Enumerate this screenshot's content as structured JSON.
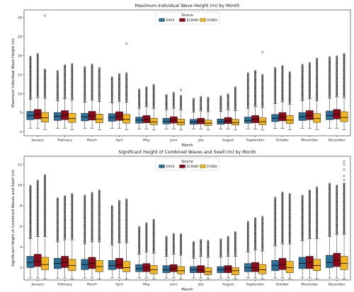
{
  "colors": {
    "ERA5": "#2a6f97",
    "ECMWF": "#8b0a1a",
    "FOWD": "#f2b51e",
    "outlier": "#000000",
    "median": "#000000"
  },
  "chart_data": [
    {
      "type": "box",
      "title": "Maximum Individual Wave Height (m) by Month",
      "xlabel": "Month",
      "ylabel": "Maximum Individual Wave Height (m)",
      "ylim": [
        -1,
        32
      ],
      "yticks": [
        0,
        5,
        10,
        15,
        20,
        25,
        30
      ],
      "grid": false,
      "legend": {
        "title": "Source",
        "placement": "top-center",
        "entries": [
          "ERA5",
          "ECMWF",
          "FOWD"
        ]
      },
      "categories": [
        "January",
        "February",
        "March",
        "April",
        "May",
        "June",
        "July",
        "August",
        "September",
        "October",
        "November",
        "December"
      ],
      "series": [
        {
          "name": "ERA5",
          "stats": [
            {
              "q1": 3.2,
              "med": 4.3,
              "q3": 5.4,
              "wlo": 1.0,
              "whi": 8.5,
              "omax": 19.8
            },
            {
              "q1": 3.0,
              "med": 4.1,
              "q3": 5.1,
              "wlo": 1.0,
              "whi": 8.2,
              "omax": 16.0
            },
            {
              "q1": 2.9,
              "med": 3.9,
              "q3": 4.9,
              "wlo": 1.0,
              "whi": 7.8,
              "omax": 17.0
            },
            {
              "q1": 2.8,
              "med": 3.8,
              "q3": 4.8,
              "wlo": 1.0,
              "whi": 7.6,
              "omax": 14.5
            },
            {
              "q1": 2.3,
              "med": 3.1,
              "q3": 3.9,
              "wlo": 0.8,
              "whi": 6.2,
              "omax": 11.3
            },
            {
              "q1": 2.1,
              "med": 2.8,
              "q3": 3.6,
              "wlo": 0.8,
              "whi": 5.8,
              "omax": 9.8
            },
            {
              "q1": 2.0,
              "med": 2.6,
              "q3": 3.3,
              "wlo": 0.8,
              "whi": 5.2,
              "omax": 8.8
            },
            {
              "q1": 2.0,
              "med": 2.7,
              "q3": 3.4,
              "wlo": 0.8,
              "whi": 5.4,
              "omax": 9.3
            },
            {
              "q1": 2.3,
              "med": 3.0,
              "q3": 3.9,
              "wlo": 0.8,
              "whi": 6.2,
              "omax": 15.5
            },
            {
              "q1": 2.7,
              "med": 3.6,
              "q3": 4.6,
              "wlo": 0.9,
              "whi": 7.4,
              "omax": 17.0
            },
            {
              "q1": 3.0,
              "med": 4.0,
              "q3": 5.1,
              "wlo": 1.0,
              "whi": 8.2,
              "omax": 17.8
            },
            {
              "q1": 3.2,
              "med": 4.3,
              "q3": 5.5,
              "wlo": 1.0,
              "whi": 8.8,
              "omax": 19.8
            }
          ]
        },
        {
          "name": "ECMWF",
          "stats": [
            {
              "q1": 3.4,
              "med": 4.6,
              "q3": 5.9,
              "wlo": 1.0,
              "whi": 9.0,
              "omax": 20.5
            },
            {
              "q1": 3.2,
              "med": 4.4,
              "q3": 5.6,
              "wlo": 1.0,
              "whi": 8.7,
              "omax": 17.5
            },
            {
              "q1": 3.1,
              "med": 4.2,
              "q3": 5.4,
              "wlo": 1.0,
              "whi": 8.3,
              "omax": 17.8
            },
            {
              "q1": 3.0,
              "med": 4.1,
              "q3": 5.3,
              "wlo": 1.0,
              "whi": 8.0,
              "omax": 15.3
            },
            {
              "q1": 2.4,
              "med": 3.3,
              "q3": 4.3,
              "wlo": 0.8,
              "whi": 6.6,
              "omax": 11.8
            },
            {
              "q1": 2.3,
              "med": 3.1,
              "q3": 4.0,
              "wlo": 0.8,
              "whi": 6.2,
              "omax": 10.3
            },
            {
              "q1": 2.1,
              "med": 2.8,
              "q3": 3.6,
              "wlo": 0.8,
              "whi": 5.5,
              "omax": 9.2
            },
            {
              "q1": 2.2,
              "med": 2.9,
              "q3": 3.8,
              "wlo": 0.8,
              "whi": 5.8,
              "omax": 10.0
            },
            {
              "q1": 2.4,
              "med": 3.3,
              "q3": 4.3,
              "wlo": 0.8,
              "whi": 6.6,
              "omax": 16.0
            },
            {
              "q1": 2.9,
              "med": 3.9,
              "q3": 5.1,
              "wlo": 0.9,
              "whi": 7.9,
              "omax": 17.5
            },
            {
              "q1": 3.2,
              "med": 4.3,
              "q3": 5.6,
              "wlo": 1.0,
              "whi": 8.7,
              "omax": 18.3
            },
            {
              "q1": 3.4,
              "med": 4.6,
              "q3": 5.9,
              "wlo": 1.0,
              "whi": 9.2,
              "omax": 20.0
            }
          ]
        },
        {
          "name": "FOWD",
          "stats": [
            {
              "q1": 2.6,
              "med": 3.7,
              "q3": 5.1,
              "wlo": 0.6,
              "whi": 8.8,
              "omax": 16.5,
              "extra": [
                30.5
              ]
            },
            {
              "q1": 2.5,
              "med": 3.5,
              "q3": 4.9,
              "wlo": 0.6,
              "whi": 8.4,
              "omax": 17.8
            },
            {
              "q1": 2.4,
              "med": 3.4,
              "q3": 4.7,
              "wlo": 0.6,
              "whi": 8.0,
              "omax": 16.8
            },
            {
              "q1": 2.3,
              "med": 3.3,
              "q3": 4.6,
              "wlo": 0.6,
              "whi": 7.8,
              "omax": 15.5,
              "extra": [
                23.2
              ]
            },
            {
              "q1": 1.9,
              "med": 2.6,
              "q3": 3.6,
              "wlo": 0.5,
              "whi": 6.2,
              "omax": 12.5
            },
            {
              "q1": 1.8,
              "med": 2.5,
              "q3": 3.4,
              "wlo": 0.5,
              "whi": 5.8,
              "omax": 9.5,
              "extra": [
                11.0
              ]
            },
            {
              "q1": 1.7,
              "med": 2.3,
              "q3": 3.1,
              "wlo": 0.5,
              "whi": 5.3,
              "omax": 9.0
            },
            {
              "q1": 1.8,
              "med": 2.4,
              "q3": 3.3,
              "wlo": 0.5,
              "whi": 5.6,
              "omax": 11.8
            },
            {
              "q1": 1.9,
              "med": 2.7,
              "q3": 3.7,
              "wlo": 0.5,
              "whi": 6.4,
              "omax": 15.0,
              "extra": [
                20.9
              ]
            },
            {
              "q1": 2.2,
              "med": 3.1,
              "q3": 4.3,
              "wlo": 0.6,
              "whi": 7.3,
              "omax": 15.8
            },
            {
              "q1": 2.5,
              "med": 3.5,
              "q3": 4.8,
              "wlo": 0.6,
              "whi": 8.2,
              "omax": 19.3
            },
            {
              "q1": 2.7,
              "med": 3.8,
              "q3": 5.3,
              "wlo": 0.6,
              "whi": 9.0,
              "omax": 20.5
            }
          ]
        }
      ]
    },
    {
      "type": "box",
      "title": "Significant Height of Combined Waves and Swell (m) by Month",
      "xlabel": "Month",
      "ylabel": "Significant Height of Combined Waves and Swell (m)",
      "ylim": [
        0.8,
        12.8
      ],
      "yticks": [
        2,
        4,
        6,
        8,
        10,
        12
      ],
      "grid": false,
      "legend": {
        "title": "Source",
        "placement": "top-center",
        "entries": [
          "ERA5",
          "ECMWF",
          "FOWD"
        ]
      },
      "categories": [
        "January",
        "February",
        "March",
        "April",
        "May",
        "June",
        "July",
        "August",
        "September",
        "October",
        "November",
        "December"
      ],
      "series": [
        {
          "name": "ERA5",
          "stats": [
            {
              "q1": 2.0,
              "med": 2.5,
              "q3": 3.1,
              "wlo": 1.0,
              "whi": 4.8,
              "omax": 10.0
            },
            {
              "q1": 1.9,
              "med": 2.4,
              "q3": 2.9,
              "wlo": 1.0,
              "whi": 4.5,
              "omax": 8.8
            },
            {
              "q1": 1.8,
              "med": 2.3,
              "q3": 2.8,
              "wlo": 1.0,
              "whi": 4.3,
              "omax": 9.0
            },
            {
              "q1": 1.8,
              "med": 2.2,
              "q3": 2.7,
              "wlo": 1.0,
              "whi": 4.2,
              "omax": 8.0
            },
            {
              "q1": 1.6,
              "med": 1.9,
              "q3": 2.3,
              "wlo": 1.0,
              "whi": 3.3,
              "omax": 6.0
            },
            {
              "q1": 1.5,
              "med": 1.8,
              "q3": 2.2,
              "wlo": 1.0,
              "whi": 3.1,
              "omax": 5.0
            },
            {
              "q1": 1.5,
              "med": 1.8,
              "q3": 2.1,
              "wlo": 1.0,
              "whi": 2.9,
              "omax": 4.5
            },
            {
              "q1": 1.5,
              "med": 1.8,
              "q3": 2.1,
              "wlo": 1.0,
              "whi": 3.0,
              "omax": 4.8
            },
            {
              "q1": 1.6,
              "med": 2.0,
              "q3": 2.4,
              "wlo": 1.0,
              "whi": 3.5,
              "omax": 6.5
            },
            {
              "q1": 1.7,
              "med": 2.2,
              "q3": 2.7,
              "wlo": 1.0,
              "whi": 4.1,
              "omax": 8.8
            },
            {
              "q1": 1.9,
              "med": 2.4,
              "q3": 3.0,
              "wlo": 1.0,
              "whi": 4.6,
              "omax": 9.0
            },
            {
              "q1": 2.0,
              "med": 2.5,
              "q3": 3.2,
              "wlo": 1.0,
              "whi": 5.0,
              "omax": 10.2
            }
          ]
        },
        {
          "name": "ECMWF",
          "stats": [
            {
              "q1": 2.1,
              "med": 2.6,
              "q3": 3.3,
              "wlo": 1.0,
              "whi": 5.0,
              "omax": 10.5
            },
            {
              "q1": 2.0,
              "med": 2.5,
              "q3": 3.1,
              "wlo": 1.0,
              "whi": 4.7,
              "omax": 9.0
            },
            {
              "q1": 1.9,
              "med": 2.4,
              "q3": 3.0,
              "wlo": 1.0,
              "whi": 4.5,
              "omax": 9.3
            },
            {
              "q1": 1.9,
              "med": 2.3,
              "q3": 2.9,
              "wlo": 1.0,
              "whi": 4.4,
              "omax": 8.5
            },
            {
              "q1": 1.6,
              "med": 2.0,
              "q3": 2.4,
              "wlo": 1.0,
              "whi": 3.5,
              "omax": 6.3
            },
            {
              "q1": 1.6,
              "med": 1.9,
              "q3": 2.3,
              "wlo": 1.0,
              "whi": 3.3,
              "omax": 5.3
            },
            {
              "q1": 1.5,
              "med": 1.8,
              "q3": 2.2,
              "wlo": 1.0,
              "whi": 3.1,
              "omax": 4.7
            },
            {
              "q1": 1.5,
              "med": 1.9,
              "q3": 2.2,
              "wlo": 1.0,
              "whi": 3.1,
              "omax": 5.0
            },
            {
              "q1": 1.6,
              "med": 2.0,
              "q3": 2.5,
              "wlo": 1.0,
              "whi": 3.7,
              "omax": 6.8
            },
            {
              "q1": 1.8,
              "med": 2.3,
              "q3": 2.9,
              "wlo": 1.0,
              "whi": 4.3,
              "omax": 9.3
            },
            {
              "q1": 1.9,
              "med": 2.5,
              "q3": 3.1,
              "wlo": 1.0,
              "whi": 4.8,
              "omax": 9.5
            },
            {
              "q1": 2.1,
              "med": 2.7,
              "q3": 3.4,
              "wlo": 1.0,
              "whi": 5.2,
              "omax": 10.0
            }
          ]
        },
        {
          "name": "FOWD",
          "stats": [
            {
              "q1": 1.8,
              "med": 2.3,
              "q3": 3.0,
              "wlo": 0.9,
              "whi": 5.0,
              "omax": 11.0
            },
            {
              "q1": 1.7,
              "med": 2.2,
              "q3": 2.8,
              "wlo": 0.9,
              "whi": 4.7,
              "omax": 9.2
            },
            {
              "q1": 1.6,
              "med": 2.1,
              "q3": 2.7,
              "wlo": 0.9,
              "whi": 4.5,
              "omax": 9.5
            },
            {
              "q1": 1.6,
              "med": 2.0,
              "q3": 2.6,
              "wlo": 0.9,
              "whi": 4.4,
              "omax": 8.7
            },
            {
              "q1": 1.4,
              "med": 1.8,
              "q3": 2.2,
              "wlo": 0.9,
              "whi": 3.4,
              "omax": 6.7
            },
            {
              "q1": 1.4,
              "med": 1.7,
              "q3": 2.1,
              "wlo": 0.9,
              "whi": 3.2,
              "omax": 5.3
            },
            {
              "q1": 1.3,
              "med": 1.6,
              "q3": 2.0,
              "wlo": 0.9,
              "whi": 3.0,
              "omax": 4.6
            },
            {
              "q1": 1.3,
              "med": 1.7,
              "q3": 2.0,
              "wlo": 0.9,
              "whi": 3.1,
              "omax": 5.5
            },
            {
              "q1": 1.4,
              "med": 1.8,
              "q3": 2.3,
              "wlo": 0.9,
              "whi": 3.6,
              "omax": 7.0
            },
            {
              "q1": 1.5,
              "med": 2.0,
              "q3": 2.6,
              "wlo": 0.9,
              "whi": 4.3,
              "omax": 9.2
            },
            {
              "q1": 1.7,
              "med": 2.2,
              "q3": 2.8,
              "wlo": 0.9,
              "whi": 4.8,
              "omax": 9.8
            },
            {
              "q1": 1.8,
              "med": 2.4,
              "q3": 3.1,
              "wlo": 0.9,
              "whi": 5.2,
              "omax": 10.2,
              "extra": [
                10.5,
                10.9,
                11.5,
                12.0,
                12.3
              ]
            }
          ]
        }
      ]
    }
  ]
}
